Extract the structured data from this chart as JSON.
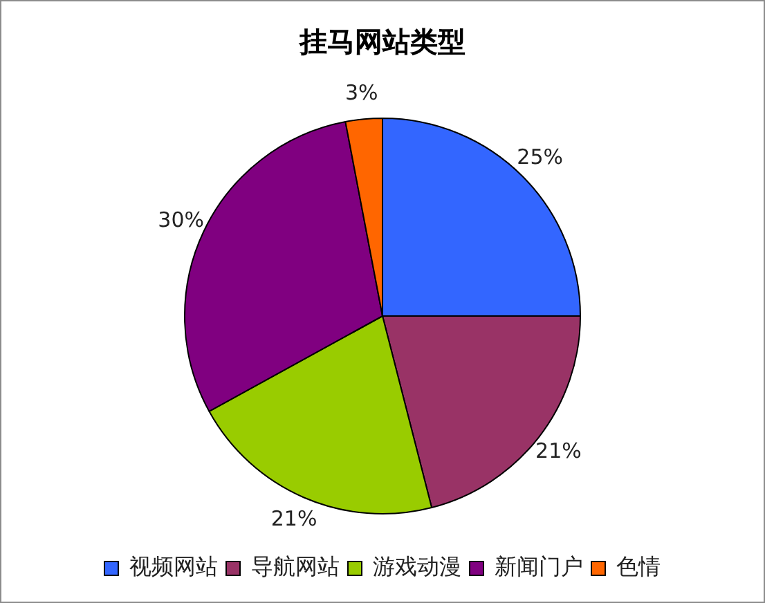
{
  "chart_data": {
    "type": "pie",
    "title": "挂马网站类型",
    "categories": [
      "视频网站",
      "导航网站",
      "游戏动漫",
      "新闻门户",
      "色情"
    ],
    "values": [
      25,
      21,
      21,
      30,
      3
    ],
    "colors": [
      "#3366ff",
      "#993366",
      "#99cc00",
      "#800080",
      "#ff6600"
    ],
    "value_labels": [
      "25%",
      "21%",
      "21%",
      "30%",
      "3%"
    ],
    "legend": "bottom"
  }
}
